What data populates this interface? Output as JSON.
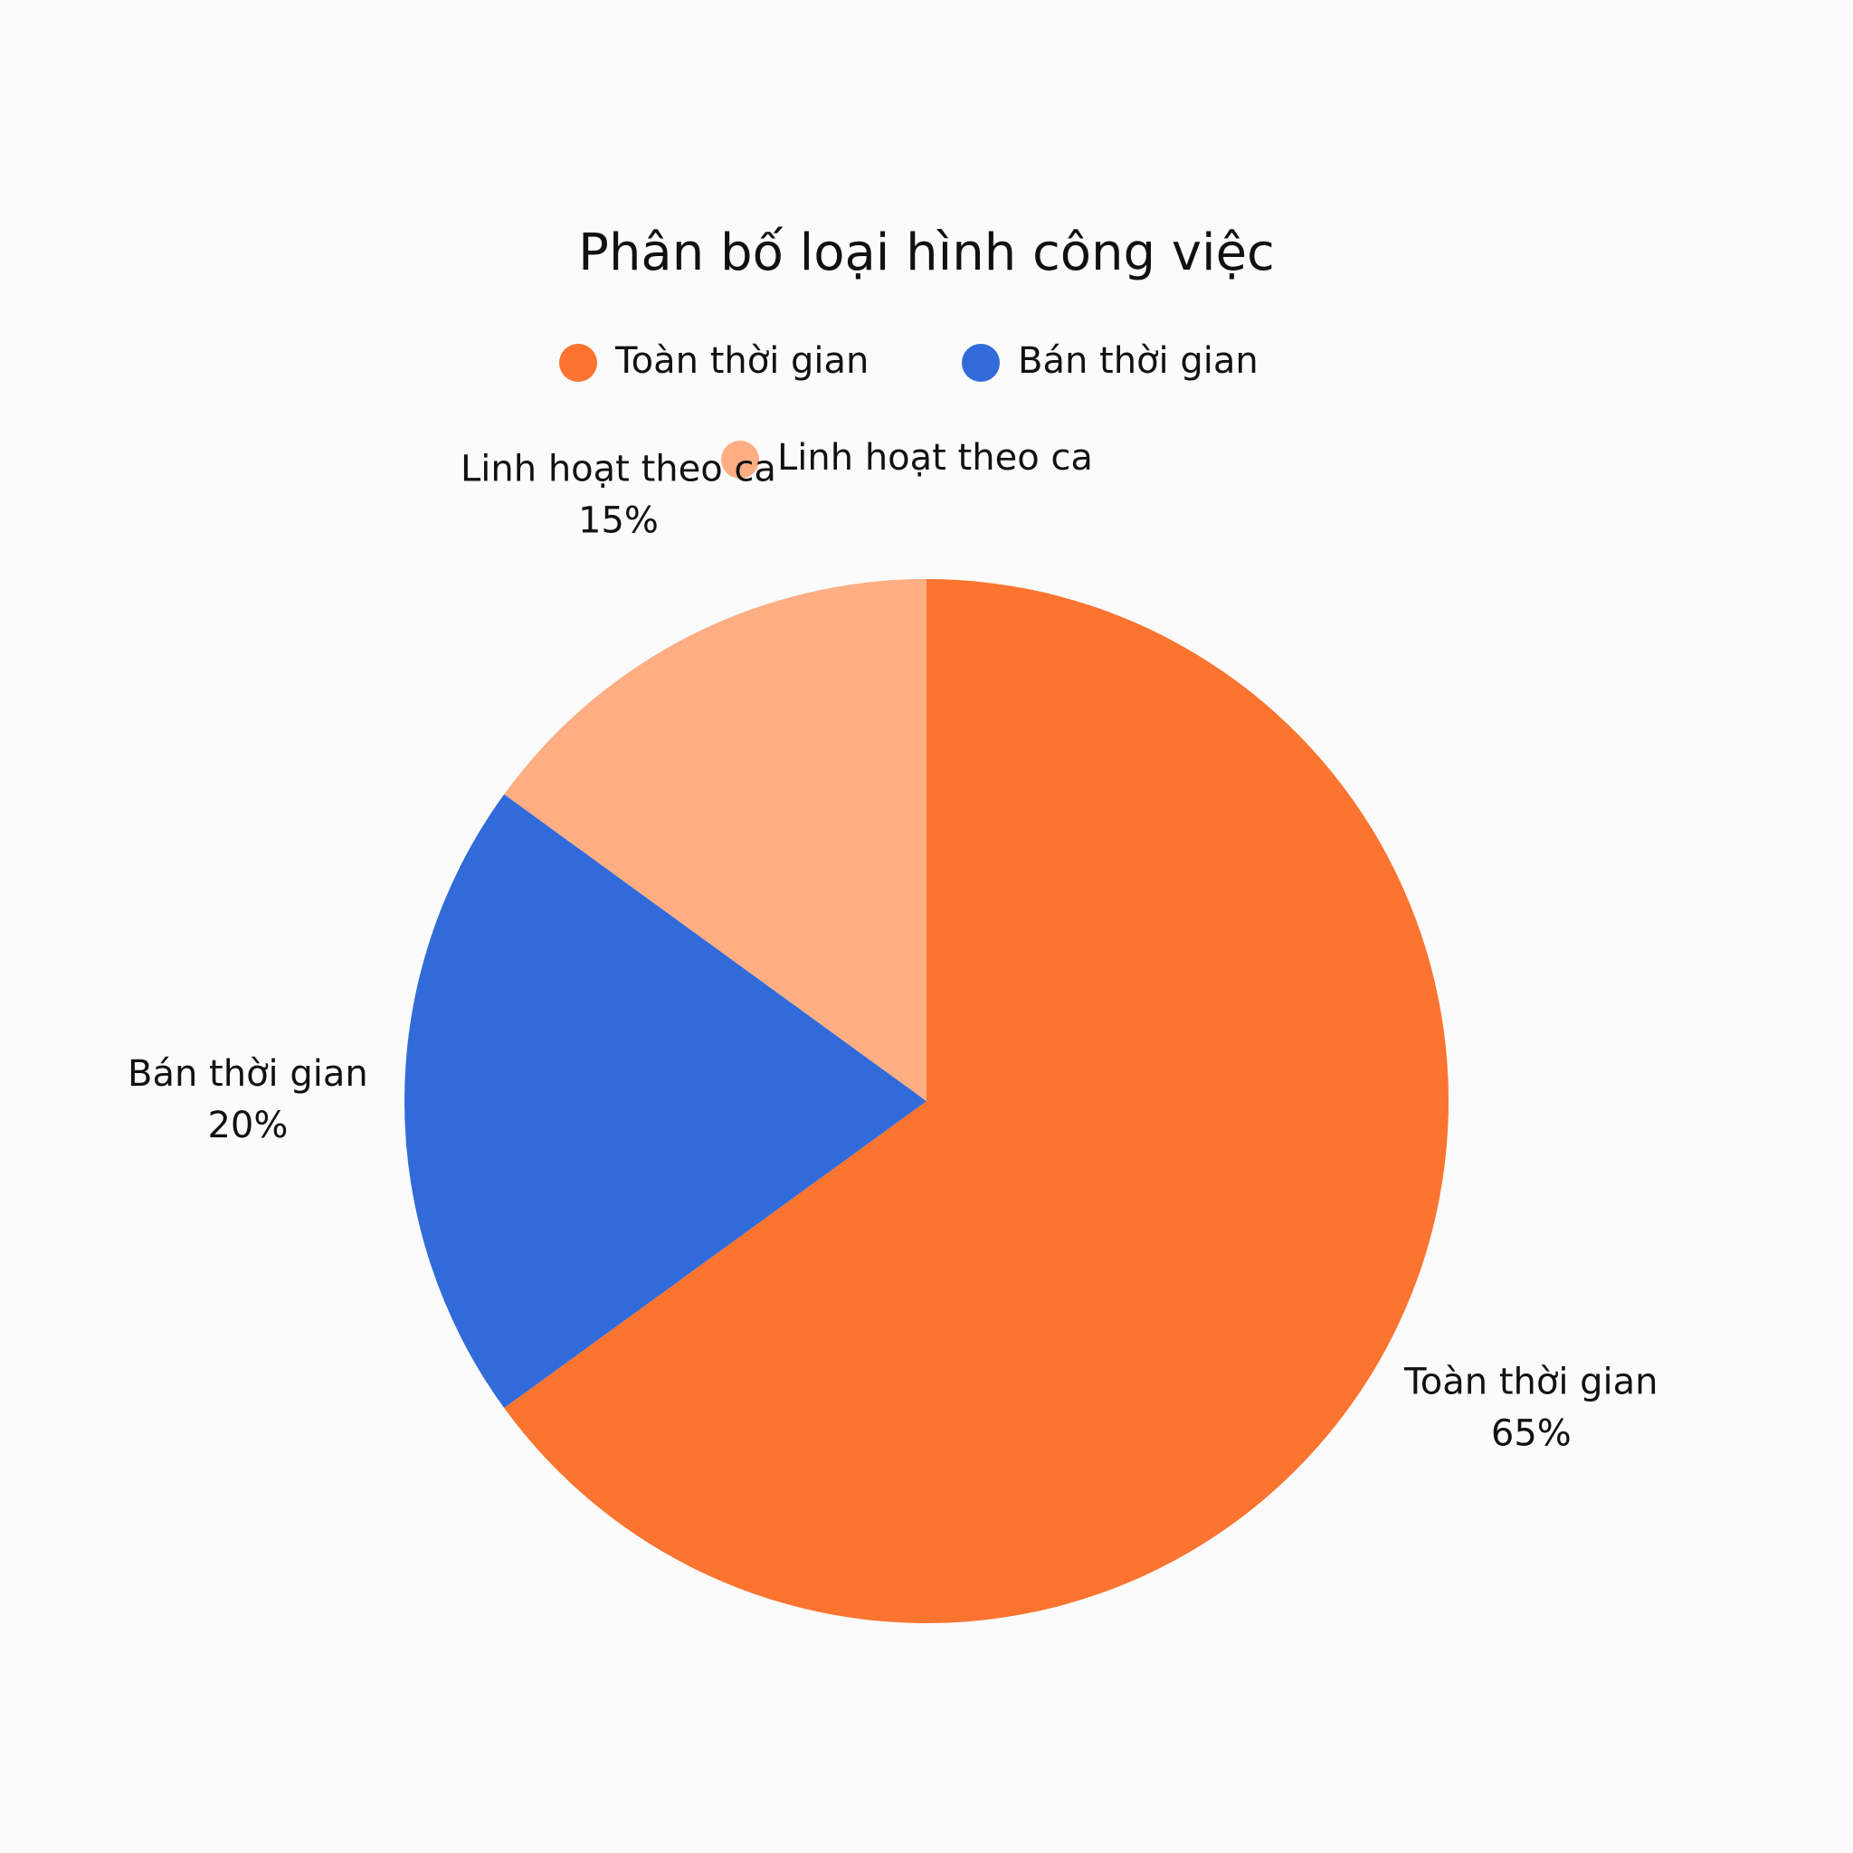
{
  "chart_data": {
    "type": "pie",
    "title": "Phân bố loại hình công việc",
    "categories": [
      "Toàn thời gian",
      "Bán thời gian",
      "Linh hoạt theo ca"
    ],
    "values": [
      65,
      20,
      15
    ],
    "value_labels": [
      "65%",
      "20%",
      "15%"
    ],
    "colors": [
      "#fb7430",
      "#316bda",
      "#ffad83"
    ]
  }
}
